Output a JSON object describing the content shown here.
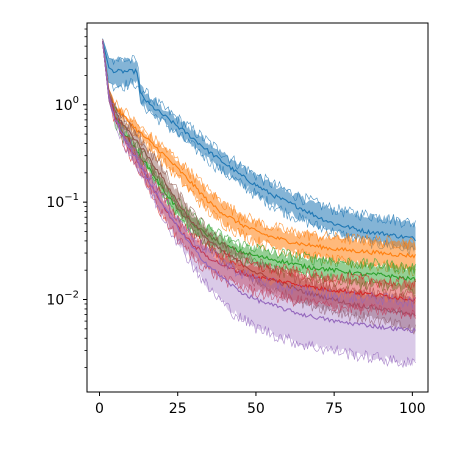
{
  "chart_data": {
    "type": "line",
    "title": "",
    "xlabel": "",
    "ylabel": "",
    "xlim": [
      -4,
      105
    ],
    "ylim_log10": [
      -2.95,
      0.84
    ],
    "yscale": "log",
    "grid": false,
    "legend": "none",
    "x_ticks": [
      {
        "value": 0,
        "label": "0"
      },
      {
        "value": 25,
        "label": "25"
      },
      {
        "value": 50,
        "label": "50"
      },
      {
        "value": 75,
        "label": "75"
      },
      {
        "value": 100,
        "label": "100"
      }
    ],
    "y_ticks": [
      {
        "value": 1,
        "base": "10",
        "exp": "0"
      },
      {
        "value": 0.1,
        "base": "10",
        "exp": "−1"
      },
      {
        "value": 0.01,
        "base": "10",
        "exp": "−2"
      }
    ],
    "series": [
      {
        "color": "#1f77b4",
        "band_alpha": 0.55,
        "x": [
          1,
          3,
          5,
          8,
          12,
          13,
          16,
          20,
          25,
          30,
          35,
          40,
          45,
          50,
          55,
          60,
          65,
          70,
          75,
          80,
          85,
          90,
          95,
          101
        ],
        "y": [
          4.5,
          2.4,
          2.2,
          2.2,
          2.2,
          1.3,
          1.0,
          0.8,
          0.6,
          0.45,
          0.33,
          0.25,
          0.19,
          0.15,
          0.12,
          0.1,
          0.085,
          0.07,
          0.06,
          0.055,
          0.05,
          0.048,
          0.045,
          0.042
        ],
        "lower": [
          4.3,
          1.7,
          1.6,
          1.6,
          1.7,
          1.1,
          0.85,
          0.68,
          0.5,
          0.37,
          0.27,
          0.2,
          0.155,
          0.12,
          0.095,
          0.078,
          0.066,
          0.056,
          0.049,
          0.044,
          0.04,
          0.037,
          0.035,
          0.032
        ],
        "upper": [
          4.8,
          3.0,
          2.9,
          2.9,
          2.8,
          1.55,
          1.2,
          0.95,
          0.72,
          0.55,
          0.41,
          0.31,
          0.24,
          0.19,
          0.155,
          0.13,
          0.11,
          0.095,
          0.085,
          0.078,
          0.075,
          0.07,
          0.066,
          0.06
        ]
      },
      {
        "color": "#ff7f0e",
        "band_alpha": 0.55,
        "x": [
          1,
          3,
          5,
          8,
          12,
          16,
          20,
          25,
          30,
          35,
          40,
          45,
          50,
          55,
          60,
          65,
          70,
          75,
          80,
          85,
          90,
          95,
          101
        ],
        "y": [
          4.5,
          1.3,
          0.95,
          0.75,
          0.55,
          0.42,
          0.32,
          0.22,
          0.15,
          0.1,
          0.075,
          0.06,
          0.05,
          0.044,
          0.04,
          0.037,
          0.035,
          0.033,
          0.032,
          0.031,
          0.03,
          0.029,
          0.028
        ],
        "lower": [
          4.3,
          1.15,
          0.85,
          0.66,
          0.48,
          0.36,
          0.27,
          0.18,
          0.12,
          0.08,
          0.06,
          0.048,
          0.04,
          0.035,
          0.031,
          0.029,
          0.027,
          0.025,
          0.024,
          0.023,
          0.022,
          0.021,
          0.02
        ],
        "upper": [
          4.7,
          1.45,
          1.05,
          0.85,
          0.63,
          0.48,
          0.38,
          0.27,
          0.19,
          0.13,
          0.095,
          0.075,
          0.063,
          0.056,
          0.051,
          0.047,
          0.045,
          0.043,
          0.042,
          0.041,
          0.04,
          0.039,
          0.038
        ]
      },
      {
        "color": "#2ca02c",
        "band_alpha": 0.5,
        "x": [
          1,
          3,
          5,
          8,
          12,
          16,
          20,
          25,
          30,
          35,
          40,
          45,
          50,
          55,
          60,
          65,
          70,
          75,
          80,
          85,
          90,
          95,
          101
        ],
        "y": [
          4.5,
          1.2,
          0.75,
          0.5,
          0.33,
          0.22,
          0.14,
          0.085,
          0.058,
          0.045,
          0.036,
          0.031,
          0.028,
          0.026,
          0.024,
          0.022,
          0.021,
          0.02,
          0.019,
          0.018,
          0.018,
          0.017,
          0.016
        ],
        "lower": [
          4.3,
          1.1,
          0.67,
          0.44,
          0.29,
          0.19,
          0.12,
          0.072,
          0.049,
          0.038,
          0.03,
          0.026,
          0.023,
          0.021,
          0.019,
          0.018,
          0.017,
          0.016,
          0.015,
          0.014,
          0.014,
          0.013,
          0.012
        ],
        "upper": [
          4.7,
          1.3,
          0.84,
          0.57,
          0.38,
          0.26,
          0.165,
          0.1,
          0.069,
          0.054,
          0.043,
          0.037,
          0.034,
          0.031,
          0.029,
          0.027,
          0.026,
          0.025,
          0.024,
          0.023,
          0.023,
          0.022,
          0.021
        ]
      },
      {
        "color": "#8c564b",
        "band_alpha": 0.45,
        "x": [
          1,
          3,
          5,
          8,
          12,
          16,
          20,
          25,
          30,
          35,
          40,
          45,
          50,
          55,
          60,
          65,
          70,
          75,
          80,
          85,
          90,
          95,
          101
        ],
        "y": [
          4.5,
          1.3,
          0.85,
          0.6,
          0.42,
          0.28,
          0.18,
          0.1,
          0.06,
          0.04,
          0.03,
          0.024,
          0.019,
          0.016,
          0.014,
          0.012,
          0.011,
          0.01,
          0.009,
          0.0085,
          0.008,
          0.0075,
          0.0068
        ],
        "lower": [
          4.3,
          1.15,
          0.75,
          0.52,
          0.35,
          0.23,
          0.15,
          0.085,
          0.05,
          0.033,
          0.024,
          0.019,
          0.015,
          0.0125,
          0.011,
          0.0095,
          0.0085,
          0.0077,
          0.007,
          0.0065,
          0.006,
          0.0055,
          0.0048
        ],
        "upper": [
          4.7,
          1.45,
          0.95,
          0.68,
          0.5,
          0.34,
          0.22,
          0.125,
          0.075,
          0.05,
          0.037,
          0.03,
          0.024,
          0.021,
          0.018,
          0.016,
          0.0145,
          0.0135,
          0.0125,
          0.012,
          0.0115,
          0.011,
          0.0105
        ]
      },
      {
        "color": "#d62728",
        "band_alpha": 0.45,
        "x": [
          1,
          3,
          5,
          8,
          12,
          16,
          20,
          25,
          30,
          35,
          40,
          45,
          50,
          55,
          60,
          65,
          70,
          75,
          80,
          85,
          90,
          95,
          101
        ],
        "y": [
          4.5,
          1.2,
          0.72,
          0.45,
          0.27,
          0.16,
          0.095,
          0.055,
          0.036,
          0.027,
          0.022,
          0.019,
          0.017,
          0.016,
          0.015,
          0.014,
          0.013,
          0.0125,
          0.012,
          0.0115,
          0.011,
          0.0105,
          0.01
        ],
        "lower": [
          4.3,
          1.1,
          0.65,
          0.4,
          0.23,
          0.13,
          0.075,
          0.042,
          0.027,
          0.02,
          0.016,
          0.0135,
          0.012,
          0.011,
          0.0102,
          0.0095,
          0.009,
          0.0085,
          0.0082,
          0.008,
          0.0077,
          0.0074,
          0.007
        ],
        "upper": [
          4.7,
          1.3,
          0.8,
          0.5,
          0.31,
          0.19,
          0.115,
          0.068,
          0.045,
          0.034,
          0.028,
          0.024,
          0.022,
          0.021,
          0.02,
          0.0185,
          0.0175,
          0.017,
          0.0165,
          0.016,
          0.0155,
          0.015,
          0.0145
        ]
      },
      {
        "color": "#9467bd",
        "band_alpha": 0.35,
        "x": [
          1,
          3,
          5,
          8,
          12,
          16,
          20,
          25,
          30,
          35,
          40,
          45,
          50,
          55,
          60,
          65,
          70,
          75,
          80,
          85,
          90,
          95,
          101
        ],
        "y": [
          4.5,
          1.2,
          0.72,
          0.45,
          0.27,
          0.16,
          0.095,
          0.055,
          0.033,
          0.022,
          0.016,
          0.012,
          0.01,
          0.0088,
          0.0078,
          0.007,
          0.0065,
          0.006,
          0.0057,
          0.0055,
          0.0052,
          0.005,
          0.0048
        ],
        "lower": [
          4.3,
          1.1,
          0.65,
          0.4,
          0.23,
          0.13,
          0.075,
          0.04,
          0.022,
          0.013,
          0.0088,
          0.0065,
          0.0052,
          0.0045,
          0.0039,
          0.0035,
          0.0032,
          0.003,
          0.0028,
          0.0026,
          0.0025,
          0.0023,
          0.0022
        ],
        "upper": [
          4.7,
          1.3,
          0.8,
          0.5,
          0.31,
          0.19,
          0.115,
          0.068,
          0.043,
          0.031,
          0.024,
          0.019,
          0.0165,
          0.0148,
          0.0135,
          0.0125,
          0.0118,
          0.0112,
          0.0108,
          0.0105,
          0.0102,
          0.0098,
          0.0095
        ]
      }
    ]
  }
}
